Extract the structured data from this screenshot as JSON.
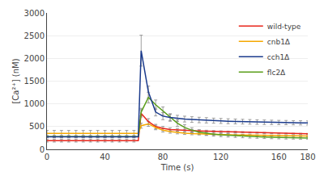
{
  "chart_data": {
    "type": "line",
    "xlabel": "Time (s)",
    "ylabel": "[Ca²⁺] (nM)",
    "xlim": [
      0,
      180
    ],
    "ylim": [
      0,
      3000
    ],
    "xticks": [
      0,
      40,
      80,
      120,
      160,
      180
    ],
    "yticks": [
      0,
      500,
      1000,
      1500,
      2000,
      2500,
      3000
    ],
    "grid": true,
    "legend": "upper right",
    "x": [
      0,
      5,
      10,
      15,
      20,
      25,
      30,
      35,
      40,
      45,
      50,
      55,
      60,
      63,
      65,
      70,
      75,
      80,
      85,
      90,
      95,
      100,
      105,
      110,
      115,
      120,
      125,
      130,
      135,
      140,
      145,
      150,
      155,
      160,
      165,
      170,
      175,
      180
    ],
    "series": [
      {
        "name": "wild-type",
        "color": "#e8251a",
        "values": [
          190,
          190,
          190,
          190,
          190,
          190,
          190,
          190,
          190,
          190,
          190,
          190,
          190,
          190,
          790,
          610,
          500,
          460,
          435,
          425,
          415,
          410,
          405,
          400,
          395,
          390,
          385,
          380,
          375,
          370,
          365,
          360,
          355,
          350,
          347,
          344,
          342,
          340
        ],
        "errors": [
          30,
          30,
          30,
          30,
          30,
          30,
          30,
          30,
          30,
          30,
          30,
          30,
          30,
          null,
          80,
          65,
          50,
          45,
          38,
          32,
          28,
          25,
          22,
          20,
          18,
          17,
          16,
          15,
          14,
          13,
          12,
          12,
          11,
          11,
          10,
          10,
          10,
          10
        ]
      },
      {
        "name": "cnb1Δ",
        "color": "#f5a800",
        "values": [
          350,
          350,
          350,
          350,
          350,
          350,
          350,
          350,
          350,
          350,
          350,
          350,
          350,
          350,
          520,
          560,
          480,
          420,
          390,
          370,
          355,
          345,
          338,
          332,
          328,
          324,
          320,
          316,
          313,
          310,
          307,
          305,
          303,
          301,
          299,
          297,
          295,
          294
        ],
        "errors": [
          65,
          65,
          65,
          65,
          65,
          65,
          65,
          65,
          65,
          65,
          65,
          65,
          65,
          null,
          55,
          55,
          50,
          40,
          35,
          30,
          28,
          25,
          22,
          20,
          18,
          17,
          16,
          15,
          14,
          13,
          12,
          12,
          11,
          11,
          10,
          10,
          10,
          10
        ]
      },
      {
        "name": "cch1Δ",
        "color": "#1a3a8c",
        "values": [
          275,
          275,
          275,
          275,
          275,
          275,
          275,
          275,
          275,
          275,
          275,
          275,
          275,
          275,
          2170,
          1260,
          820,
          730,
          700,
          680,
          665,
          655,
          645,
          638,
          630,
          624,
          618,
          613,
          608,
          604,
          600,
          596,
          593,
          590,
          588,
          585,
          583,
          580
        ],
        "errors": [
          22,
          22,
          22,
          22,
          22,
          22,
          22,
          22,
          22,
          22,
          22,
          22,
          22,
          null,
          340,
          130,
          85,
          78,
          72,
          68,
          64,
          62,
          60,
          58,
          56,
          55,
          54,
          53,
          52,
          51,
          50,
          49,
          48,
          47,
          47,
          46,
          46,
          45
        ]
      },
      {
        "name": "flc2Δ",
        "color": "#5a9e1a",
        "values": [
          280,
          280,
          280,
          280,
          280,
          280,
          280,
          280,
          280,
          280,
          280,
          280,
          280,
          280,
          820,
          1140,
          980,
          840,
          700,
          575,
          482,
          420,
          378,
          350,
          332,
          318,
          308,
          298,
          290,
          282,
          276,
          270,
          265,
          261,
          257,
          254,
          251,
          248
        ],
        "errors": [
          22,
          22,
          22,
          22,
          22,
          22,
          22,
          22,
          22,
          22,
          22,
          22,
          22,
          null,
          82,
          115,
          105,
          92,
          82,
          72,
          62,
          55,
          50,
          46,
          43,
          40,
          38,
          36,
          35,
          34,
          33,
          32,
          31,
          30,
          30,
          29,
          29,
          28
        ]
      }
    ]
  }
}
